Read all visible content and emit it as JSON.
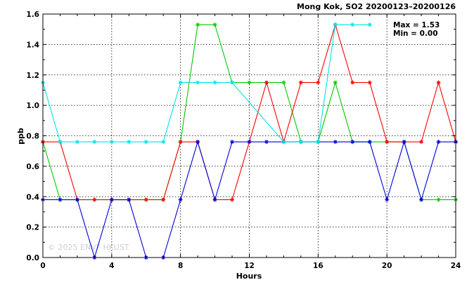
{
  "chart_data": {
    "type": "line",
    "title": "Mong Kok, SO2  20200123–20200126",
    "xlabel": "Hours",
    "ylabel": "ppb",
    "xlim": [
      0,
      24
    ],
    "ylim": [
      0,
      1.6
    ],
    "xticks": [
      "0",
      "4",
      "8",
      "12",
      "16",
      "20",
      "24"
    ],
    "yticks": [
      "0.0",
      "0.2",
      "0.4",
      "0.6",
      "0.8",
      "1.0",
      "1.2",
      "1.4",
      "1.6"
    ],
    "grid": true,
    "stats": {
      "max": "Max = 1.53",
      "min": "Min = 0.00"
    },
    "watermark": "© 2025  ENVF HKUST",
    "x": [
      0,
      1,
      2,
      3,
      4,
      5,
      6,
      7,
      8,
      9,
      10,
      11,
      12,
      13,
      14,
      15,
      16,
      17,
      18,
      19,
      20,
      21,
      22,
      23,
      24
    ],
    "series": [
      {
        "color": "#00cc00",
        "values": [
          0.76,
          0.38,
          0.38,
          0.38,
          0.38,
          0.38,
          0.38,
          0.38,
          0.76,
          1.53,
          1.53,
          1.15,
          1.15,
          1.15,
          1.15,
          0.76,
          0.76,
          1.15,
          0.76,
          0.76,
          0.76,
          0.76,
          0.38,
          0.38,
          0.38
        ]
      },
      {
        "color": "#ff0000",
        "values": [
          0.76,
          0.76,
          0.38,
          0.38,
          0.38,
          0.38,
          0.38,
          0.38,
          0.76,
          0.76,
          0.38,
          0.38,
          0.76,
          1.15,
          0.76,
          1.15,
          1.15,
          1.53,
          1.15,
          1.15,
          0.76,
          0.76,
          0.76,
          1.15,
          0.76
        ]
      },
      {
        "color": "#0000dd",
        "values": [
          0.38,
          0.38,
          0.38,
          0.0,
          0.38,
          0.38,
          0.0,
          0.0,
          0.38,
          0.76,
          0.38,
          0.76,
          0.76,
          0.76,
          0.76,
          0.76,
          0.76,
          0.76,
          0.76,
          0.76,
          0.38,
          0.76,
          0.38,
          0.76,
          0.76
        ]
      },
      {
        "color": "#00e5e5",
        "values": [
          1.15,
          0.76,
          0.76,
          0.76,
          0.76,
          0.76,
          0.76,
          0.76,
          1.15,
          1.15,
          1.15,
          1.15,
          null,
          null,
          0.76,
          0.76,
          0.76,
          1.53,
          1.53,
          1.53,
          null,
          null,
          null,
          null,
          null
        ]
      }
    ]
  }
}
